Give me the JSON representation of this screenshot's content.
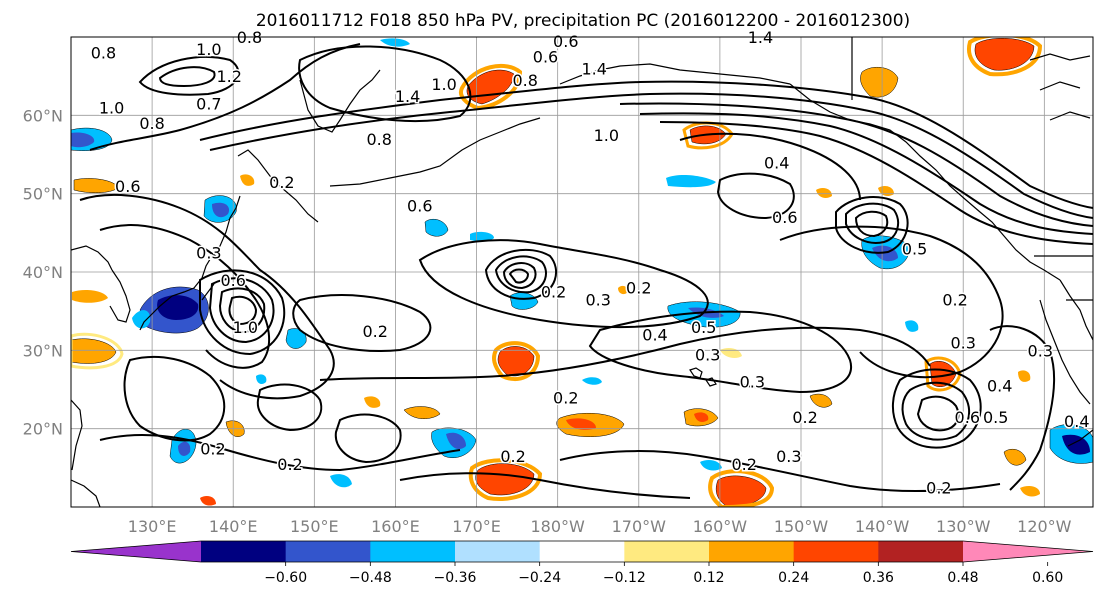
{
  "title": "2016011712 F018 850 hPa PV, precipitation PC (2016012200 - 2016012300)",
  "map": {
    "lat_ticks": [
      {
        "lat": 60,
        "label": "60°N"
      },
      {
        "lat": 50,
        "label": "50°N"
      },
      {
        "lat": 40,
        "label": "40°N"
      },
      {
        "lat": 30,
        "label": "30°N"
      },
      {
        "lat": 20,
        "label": "20°N"
      }
    ],
    "lon_ticks": [
      {
        "lon": 130,
        "label": "130°E"
      },
      {
        "lon": 140,
        "label": "140°E"
      },
      {
        "lon": 150,
        "label": "150°E"
      },
      {
        "lon": 160,
        "label": "160°E"
      },
      {
        "lon": 170,
        "label": "170°E"
      },
      {
        "lon": 180,
        "label": "180°W"
      },
      {
        "lon": 190,
        "label": "170°W"
      },
      {
        "lon": 200,
        "label": "160°W"
      },
      {
        "lon": 210,
        "label": "150°W"
      },
      {
        "lon": 220,
        "label": "140°W"
      },
      {
        "lon": 230,
        "label": "130°W"
      },
      {
        "lon": 240,
        "label": "120°W"
      }
    ],
    "contour_labels": [
      {
        "text": "0.8",
        "lon": 124,
        "lat": 68
      },
      {
        "text": "1.0",
        "lon": 137,
        "lat": 68.5
      },
      {
        "text": "0.8",
        "lon": 142,
        "lat": 70
      },
      {
        "text": "1.2",
        "lon": 139.5,
        "lat": 65
      },
      {
        "text": "0.7",
        "lon": 137,
        "lat": 61.5
      },
      {
        "text": "1.0",
        "lon": 125,
        "lat": 61
      },
      {
        "text": "0.8",
        "lon": 130,
        "lat": 59
      },
      {
        "text": "1.4",
        "lon": 161.5,
        "lat": 62.5
      },
      {
        "text": "1.0",
        "lon": 166,
        "lat": 64
      },
      {
        "text": "0.8",
        "lon": 158,
        "lat": 57
      },
      {
        "text": "0.8",
        "lon": 176,
        "lat": 64.5
      },
      {
        "text": "0.6",
        "lon": 178.5,
        "lat": 67.5
      },
      {
        "text": "0.6",
        "lon": 181,
        "lat": 69.5
      },
      {
        "text": "1.4",
        "lon": 184.5,
        "lat": 66
      },
      {
        "text": "1.4",
        "lon": 205,
        "lat": 70
      },
      {
        "text": "1.0",
        "lon": 186,
        "lat": 57.5
      },
      {
        "text": "0.4",
        "lon": 207,
        "lat": 54
      },
      {
        "text": "0.6",
        "lon": 127,
        "lat": 51
      },
      {
        "text": "0.2",
        "lon": 146,
        "lat": 51.5
      },
      {
        "text": "0.6",
        "lon": 163,
        "lat": 48.5
      },
      {
        "text": "0.6",
        "lon": 208,
        "lat": 47
      },
      {
        "text": "0.5",
        "lon": 224,
        "lat": 43
      },
      {
        "text": "0.3",
        "lon": 137,
        "lat": 42.5
      },
      {
        "text": "0.2",
        "lon": 179.5,
        "lat": 37.5
      },
      {
        "text": "0.2",
        "lon": 190,
        "lat": 38
      },
      {
        "text": "0.3",
        "lon": 185,
        "lat": 36.5
      },
      {
        "text": "0.6",
        "lon": 140,
        "lat": 39
      },
      {
        "text": "1.0",
        "lon": 141.5,
        "lat": 33
      },
      {
        "text": "0.2",
        "lon": 157.5,
        "lat": 32.5
      },
      {
        "text": "0.4",
        "lon": 192,
        "lat": 32
      },
      {
        "text": "0.5",
        "lon": 198,
        "lat": 33
      },
      {
        "text": "0.3",
        "lon": 198.5,
        "lat": 29.5
      },
      {
        "text": "0.3",
        "lon": 204,
        "lat": 26
      },
      {
        "text": "0.2",
        "lon": 181,
        "lat": 24
      },
      {
        "text": "0.2",
        "lon": 210.5,
        "lat": 21.5
      },
      {
        "text": "0.3",
        "lon": 230,
        "lat": 31
      },
      {
        "text": "0.3",
        "lon": 239.5,
        "lat": 30
      },
      {
        "text": "0.4",
        "lon": 234.5,
        "lat": 25.5
      },
      {
        "text": "0.5",
        "lon": 234,
        "lat": 21.5
      },
      {
        "text": "0.6",
        "lon": 230.5,
        "lat": 21.5
      },
      {
        "text": "0.4",
        "lon": 244,
        "lat": 21
      },
      {
        "text": "0.2",
        "lon": 229,
        "lat": 36.5
      },
      {
        "text": "0.2",
        "lon": 137.5,
        "lat": 17.5
      },
      {
        "text": "0.2",
        "lon": 147,
        "lat": 15.5
      },
      {
        "text": "0.2",
        "lon": 174.5,
        "lat": 16.5
      },
      {
        "text": "0.2",
        "lon": 203,
        "lat": 15.5
      },
      {
        "text": "0.3",
        "lon": 208.5,
        "lat": 16.5
      },
      {
        "text": "0.2",
        "lon": 227,
        "lat": 12.5
      }
    ]
  },
  "colorbar": {
    "colors": [
      "#9933cc",
      "#000080",
      "#3355cc",
      "#00bfff",
      "#b0e0ff",
      "#ffffff",
      "#ffea80",
      "#ffa500",
      "#ff4500",
      "#b22222",
      "#ff88b8"
    ],
    "tick_labels": [
      "−0.60",
      "−0.48",
      "−0.36",
      "−0.24",
      "−0.12",
      "0.12",
      "0.24",
      "0.36",
      "0.48",
      "0.60"
    ]
  },
  "chart_data": {
    "type": "heatmap",
    "title": "2016011712 F018 850 hPa PV, precipitation PC (2016012200 - 2016012300)",
    "xlim_deg": [
      120,
      246
    ],
    "ylim_deg": [
      10,
      70
    ],
    "contour_field": "850 hPa PV",
    "contour_levels_labeled": [
      0.2,
      0.3,
      0.4,
      0.5,
      0.6,
      0.7,
      0.8,
      1.0,
      1.2,
      1.4
    ],
    "shaded_field": "precipitation PC",
    "colorbar_levels": [
      -0.6,
      -0.48,
      -0.36,
      -0.24,
      -0.12,
      0.12,
      0.24,
      0.36,
      0.48,
      0.6
    ],
    "colorbar_extend": "both"
  }
}
